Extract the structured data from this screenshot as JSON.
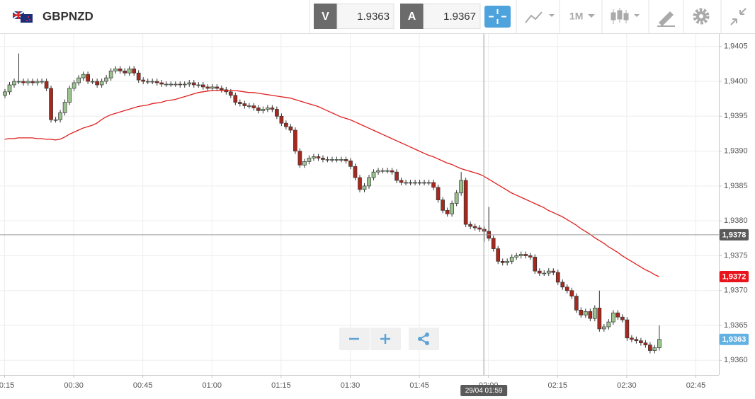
{
  "header": {
    "symbol": "GBPNZD",
    "bid": {
      "label": "V",
      "value": 1.9363
    },
    "ask": {
      "label": "A",
      "value": 1.9367
    },
    "timeframe": "1M"
  },
  "chart_data": {
    "type": "candlestick",
    "x": [
      "00:15",
      "00:16",
      "00:17",
      "00:18",
      "00:19",
      "00:20",
      "00:21",
      "00:22",
      "00:23",
      "00:24",
      "00:25",
      "00:26",
      "00:27",
      "00:28",
      "00:29",
      "00:30",
      "00:31",
      "00:32",
      "00:33",
      "00:34",
      "00:35",
      "00:36",
      "00:37",
      "00:38",
      "00:39",
      "00:40",
      "00:41",
      "00:42",
      "00:43",
      "00:44",
      "00:45",
      "00:46",
      "00:47",
      "00:48",
      "00:49",
      "00:50",
      "00:51",
      "00:52",
      "00:53",
      "00:54",
      "00:55",
      "00:56",
      "00:57",
      "00:58",
      "00:59",
      "01:00",
      "01:01",
      "01:02",
      "01:03",
      "01:04",
      "01:05",
      "01:06",
      "01:07",
      "01:08",
      "01:09",
      "01:10",
      "01:11",
      "01:12",
      "01:13",
      "01:14",
      "01:15",
      "01:16",
      "01:17",
      "01:18",
      "01:19",
      "01:20",
      "01:21",
      "01:22",
      "01:23",
      "01:24",
      "01:25",
      "01:26",
      "01:27",
      "01:28",
      "01:29",
      "01:30",
      "01:31",
      "01:32",
      "01:33",
      "01:34",
      "01:35",
      "01:36",
      "01:37",
      "01:38",
      "01:39",
      "01:40",
      "01:41",
      "01:42",
      "01:43",
      "01:44",
      "01:45",
      "01:46",
      "01:47",
      "01:48",
      "01:49",
      "01:50",
      "01:51",
      "01:52",
      "01:53",
      "01:54",
      "01:55",
      "01:56",
      "01:57",
      "01:58",
      "01:59",
      "02:00",
      "02:01",
      "02:02",
      "02:03",
      "02:04",
      "02:05",
      "02:06",
      "02:07",
      "02:08",
      "02:09",
      "02:10",
      "02:11",
      "02:12",
      "02:13",
      "02:14",
      "02:15",
      "02:16",
      "02:17",
      "02:18",
      "02:19",
      "02:20",
      "02:21",
      "02:22",
      "02:23",
      "02:24",
      "02:25",
      "02:26",
      "02:27",
      "02:28",
      "02:29",
      "02:30",
      "02:31",
      "02:32",
      "02:33",
      "02:34",
      "02:35",
      "02:36",
      "02:37"
    ],
    "series": [
      {
        "type": "candlestick",
        "up_color": "#9cc38f",
        "down_color": "#a8281e",
        "open": [
          1.9398,
          1.93985,
          1.93995,
          1.94,
          1.94,
          1.93998,
          1.94,
          1.93998,
          1.94,
          1.94,
          1.9399,
          1.93945,
          1.93945,
          1.93955,
          1.9397,
          1.9399,
          1.93998,
          1.94005,
          1.9401,
          1.94,
          1.94,
          1.93995,
          1.94,
          1.94005,
          1.94015,
          1.94018,
          1.94015,
          1.94012,
          1.94018,
          1.94012,
          1.94002,
          1.94,
          1.94,
          1.94,
          1.93998,
          1.93996,
          1.93996,
          1.93996,
          1.93996,
          1.93995,
          1.93996,
          1.93998,
          1.93995,
          1.93995,
          1.93992,
          1.9399,
          1.93992,
          1.9399,
          1.93988,
          1.93985,
          1.9398,
          1.9397,
          1.93968,
          1.93965,
          1.93965,
          1.93962,
          1.93958,
          1.9396,
          1.93962,
          1.9396,
          1.9395,
          1.9394,
          1.93935,
          1.9393,
          1.939,
          1.9388,
          1.93885,
          1.9389,
          1.93892,
          1.9389,
          1.93888,
          1.93888,
          1.93888,
          1.93888,
          1.93888,
          1.93886,
          1.93878,
          1.93862,
          1.93845,
          1.9385,
          1.93862,
          1.9387,
          1.93872,
          1.93872,
          1.93872,
          1.9387,
          1.93858,
          1.93855,
          1.93855,
          1.93855,
          1.93855,
          1.93855,
          1.93855,
          1.93855,
          1.93848,
          1.9383,
          1.93815,
          1.9381,
          1.93825,
          1.9384,
          1.93858,
          1.93795,
          1.93792,
          1.9379,
          1.93788,
          1.93785,
          1.93775,
          1.9376,
          1.93742,
          1.9374,
          1.93742,
          1.93748,
          1.9375,
          1.93752,
          1.9375,
          1.93748,
          1.93728,
          1.93725,
          1.93725,
          1.93728,
          1.93726,
          1.93712,
          1.93705,
          1.937,
          1.93692,
          1.93672,
          1.93665,
          1.9367,
          1.9366,
          1.93675,
          1.93645,
          1.93648,
          1.93655,
          1.93668,
          1.93662,
          1.93658,
          1.93632,
          1.9363,
          1.93628,
          1.93625,
          1.93622,
          1.93614,
          1.93618
        ],
        "high": [
          1.93989,
          1.93999,
          1.94004,
          1.9404,
          1.94004,
          1.94004,
          1.94004,
          1.94004,
          1.94004,
          1.94004,
          1.93994,
          1.93949,
          1.93959,
          1.93974,
          1.93994,
          1.94002,
          1.94009,
          1.94014,
          1.94014,
          1.94004,
          1.94004,
          1.94004,
          1.94009,
          1.94019,
          1.94022,
          1.94022,
          1.94019,
          1.94022,
          1.94022,
          1.94016,
          1.94006,
          1.94004,
          1.94004,
          1.94004,
          1.94002,
          1.94,
          1.94,
          1.94,
          1.94,
          1.94,
          1.94002,
          1.94002,
          1.93999,
          1.93999,
          1.93996,
          1.93996,
          1.93996,
          1.93994,
          1.93992,
          1.93989,
          1.93984,
          1.93974,
          1.93972,
          1.93969,
          1.93969,
          1.93966,
          1.93964,
          1.93966,
          1.93966,
          1.93964,
          1.93954,
          1.93944,
          1.93939,
          1.93934,
          1.93904,
          1.93889,
          1.93894,
          1.93896,
          1.93896,
          1.93894,
          1.93892,
          1.93892,
          1.93892,
          1.93892,
          1.93892,
          1.9389,
          1.93882,
          1.93866,
          1.93854,
          1.93866,
          1.93874,
          1.93876,
          1.93876,
          1.93876,
          1.93876,
          1.93874,
          1.93862,
          1.93859,
          1.93859,
          1.93859,
          1.93859,
          1.93859,
          1.93859,
          1.93859,
          1.93852,
          1.93834,
          1.93819,
          1.93829,
          1.93844,
          1.9387,
          1.93862,
          1.93799,
          1.93796,
          1.93794,
          1.93792,
          1.9382,
          1.93779,
          1.93764,
          1.93746,
          1.93746,
          1.93752,
          1.93754,
          1.93756,
          1.93756,
          1.93754,
          1.93752,
          1.93732,
          1.93729,
          1.93732,
          1.93732,
          1.9373,
          1.93716,
          1.93709,
          1.93704,
          1.93696,
          1.93676,
          1.93674,
          1.93674,
          1.93679,
          1.937,
          1.93652,
          1.93659,
          1.93672,
          1.93672,
          1.93666,
          1.93662,
          1.93636,
          1.93634,
          1.93632,
          1.93629,
          1.93626,
          1.93622,
          1.9365
        ],
        "low": [
          1.93976,
          1.93981,
          1.93991,
          1.93996,
          1.93994,
          1.93994,
          1.93994,
          1.93994,
          1.93996,
          1.93986,
          1.93941,
          1.93941,
          1.93941,
          1.93951,
          1.93966,
          1.93986,
          1.93994,
          1.94001,
          1.93996,
          1.93996,
          1.93991,
          1.93991,
          1.93996,
          1.94001,
          1.94011,
          1.94011,
          1.94008,
          1.94008,
          1.94008,
          1.93998,
          1.93996,
          1.93996,
          1.93996,
          1.93994,
          1.93992,
          1.93992,
          1.93992,
          1.93992,
          1.93991,
          1.93991,
          1.93992,
          1.93991,
          1.93991,
          1.93988,
          1.93986,
          1.93986,
          1.93986,
          1.93984,
          1.93981,
          1.93976,
          1.93966,
          1.93964,
          1.93961,
          1.93961,
          1.93958,
          1.93954,
          1.93954,
          1.93956,
          1.93956,
          1.93946,
          1.93936,
          1.93931,
          1.93926,
          1.93896,
          1.93876,
          1.93876,
          1.93881,
          1.93886,
          1.93886,
          1.93884,
          1.93884,
          1.93884,
          1.93884,
          1.93884,
          1.93882,
          1.93874,
          1.93858,
          1.93841,
          1.93841,
          1.93846,
          1.93858,
          1.93866,
          1.93868,
          1.93868,
          1.93866,
          1.93854,
          1.93851,
          1.93851,
          1.93851,
          1.93851,
          1.93851,
          1.93851,
          1.93851,
          1.93844,
          1.93826,
          1.93811,
          1.93806,
          1.93806,
          1.93821,
          1.93836,
          1.93791,
          1.93788,
          1.93786,
          1.93784,
          1.9377,
          1.93771,
          1.93756,
          1.93738,
          1.93736,
          1.93736,
          1.93738,
          1.93744,
          1.93746,
          1.93746,
          1.93744,
          1.93724,
          1.93721,
          1.93721,
          1.93721,
          1.93722,
          1.93708,
          1.93701,
          1.93696,
          1.93688,
          1.93668,
          1.93661,
          1.93661,
          1.93656,
          1.93656,
          1.93641,
          1.93641,
          1.93644,
          1.93651,
          1.93658,
          1.93654,
          1.93628,
          1.93626,
          1.93624,
          1.93621,
          1.93618,
          1.9361,
          1.9361,
          1.93614
        ],
        "close": [
          1.93985,
          1.93995,
          1.94,
          1.94,
          1.93998,
          1.94,
          1.93998,
          1.94,
          1.94,
          1.9399,
          1.93945,
          1.93945,
          1.93955,
          1.9397,
          1.9399,
          1.93998,
          1.94005,
          1.9401,
          1.94,
          1.94,
          1.93995,
          1.94,
          1.94005,
          1.94015,
          1.94018,
          1.94015,
          1.94012,
          1.94018,
          1.94012,
          1.94002,
          1.94,
          1.94,
          1.94,
          1.93998,
          1.93996,
          1.93996,
          1.93996,
          1.93996,
          1.93995,
          1.93996,
          1.93998,
          1.93995,
          1.93995,
          1.93992,
          1.9399,
          1.93992,
          1.9399,
          1.93988,
          1.93985,
          1.9398,
          1.9397,
          1.93968,
          1.93965,
          1.93965,
          1.93962,
          1.93958,
          1.9396,
          1.93962,
          1.9396,
          1.9395,
          1.9394,
          1.93935,
          1.9393,
          1.939,
          1.9388,
          1.93885,
          1.9389,
          1.93892,
          1.9389,
          1.93888,
          1.93888,
          1.93888,
          1.93888,
          1.93888,
          1.93886,
          1.93878,
          1.93862,
          1.93845,
          1.9385,
          1.93862,
          1.9387,
          1.93872,
          1.93872,
          1.93872,
          1.9387,
          1.93858,
          1.93855,
          1.93855,
          1.93855,
          1.93855,
          1.93855,
          1.93855,
          1.93855,
          1.93848,
          1.9383,
          1.93815,
          1.9381,
          1.93825,
          1.9384,
          1.93858,
          1.93795,
          1.93792,
          1.9379,
          1.93788,
          1.93785,
          1.93775,
          1.9376,
          1.93742,
          1.9374,
          1.93742,
          1.93748,
          1.9375,
          1.93752,
          1.9375,
          1.93748,
          1.93728,
          1.93725,
          1.93725,
          1.93728,
          1.93726,
          1.93712,
          1.93705,
          1.937,
          1.93692,
          1.93672,
          1.93665,
          1.9367,
          1.9366,
          1.93675,
          1.93645,
          1.93648,
          1.93655,
          1.93668,
          1.93662,
          1.93658,
          1.93632,
          1.9363,
          1.93628,
          1.93625,
          1.93622,
          1.93614,
          1.93618,
          1.9363
        ]
      },
      {
        "type": "line",
        "color": "#e02020",
        "values": [
          1.93917,
          1.93918,
          1.93918,
          1.93919,
          1.93919,
          1.93919,
          1.93919,
          1.93918,
          1.93918,
          1.93917,
          1.93917,
          1.93916,
          1.93917,
          1.9392,
          1.93924,
          1.93927,
          1.9393,
          1.93933,
          1.93935,
          1.93937,
          1.9394,
          1.93945,
          1.93949,
          1.93952,
          1.93954,
          1.93956,
          1.93958,
          1.9396,
          1.93962,
          1.93964,
          1.93965,
          1.93966,
          1.93968,
          1.93969,
          1.9397,
          1.93972,
          1.93973,
          1.93974,
          1.93976,
          1.93978,
          1.9398,
          1.93982,
          1.93984,
          1.93985,
          1.93986,
          1.93987,
          1.93987,
          1.93987,
          1.93987,
          1.93987,
          1.93987,
          1.93986,
          1.93985,
          1.93984,
          1.93984,
          1.93983,
          1.93982,
          1.93981,
          1.9398,
          1.93979,
          1.93978,
          1.93977,
          1.93976,
          1.93974,
          1.93972,
          1.9397,
          1.93968,
          1.93966,
          1.93964,
          1.93961,
          1.93958,
          1.93955,
          1.93952,
          1.93949,
          1.93947,
          1.93945,
          1.93942,
          1.93939,
          1.93936,
          1.93933,
          1.9393,
          1.93927,
          1.93924,
          1.93921,
          1.93918,
          1.93915,
          1.93912,
          1.93909,
          1.93906,
          1.93903,
          1.939,
          1.93897,
          1.93894,
          1.93892,
          1.93889,
          1.93886,
          1.93883,
          1.93881,
          1.93878,
          1.93875,
          1.93873,
          1.93871,
          1.93869,
          1.93867,
          1.93864,
          1.9386,
          1.93856,
          1.93852,
          1.93848,
          1.93844,
          1.9384,
          1.93837,
          1.93834,
          1.93831,
          1.93828,
          1.93825,
          1.93822,
          1.93819,
          1.93815,
          1.93812,
          1.93809,
          1.93806,
          1.93802,
          1.93798,
          1.93794,
          1.93789,
          1.93785,
          1.93781,
          1.93776,
          1.93772,
          1.93768,
          1.93763,
          1.93759,
          1.93755,
          1.9375,
          1.93746,
          1.93742,
          1.93738,
          1.93734,
          1.9373,
          1.93727,
          1.93723,
          1.9372
        ]
      }
    ],
    "xlim": [
      "00:14",
      "02:50"
    ],
    "xticks": [
      "00:15",
      "00:30",
      "00:45",
      "01:00",
      "01:15",
      "01:30",
      "01:45",
      "02:00",
      "02:15",
      "02:30",
      "02:45"
    ],
    "ylim": [
      1.93579,
      1.94068
    ],
    "yticks": [
      {
        "value": 1.936,
        "label": "1,9360"
      },
      {
        "value": 1.9365,
        "label": "1,9365"
      },
      {
        "value": 1.937,
        "label": "1,9370"
      },
      {
        "value": 1.9375,
        "label": "1,9375"
      },
      {
        "value": 1.938,
        "label": "1,9380"
      },
      {
        "value": 1.9385,
        "label": "1,9385"
      },
      {
        "value": 1.939,
        "label": "1,9390"
      },
      {
        "value": 1.9395,
        "label": "1,9395"
      },
      {
        "value": 1.94,
        "label": "1,9400"
      },
      {
        "value": 1.9405,
        "label": "1,9405"
      }
    ],
    "grid": true,
    "crosshair": {
      "x": "01:59",
      "label": "29/04 01:59",
      "price": {
        "value": 1.9378,
        "label": "1,9378"
      },
      "color": "#5a5a5a"
    },
    "price_markers": [
      {
        "value": 1.9372,
        "label": "1,9372",
        "color": "#e8141b"
      },
      {
        "value": 1.9363,
        "label": "1,9363",
        "color": "#62b1e3"
      }
    ]
  }
}
